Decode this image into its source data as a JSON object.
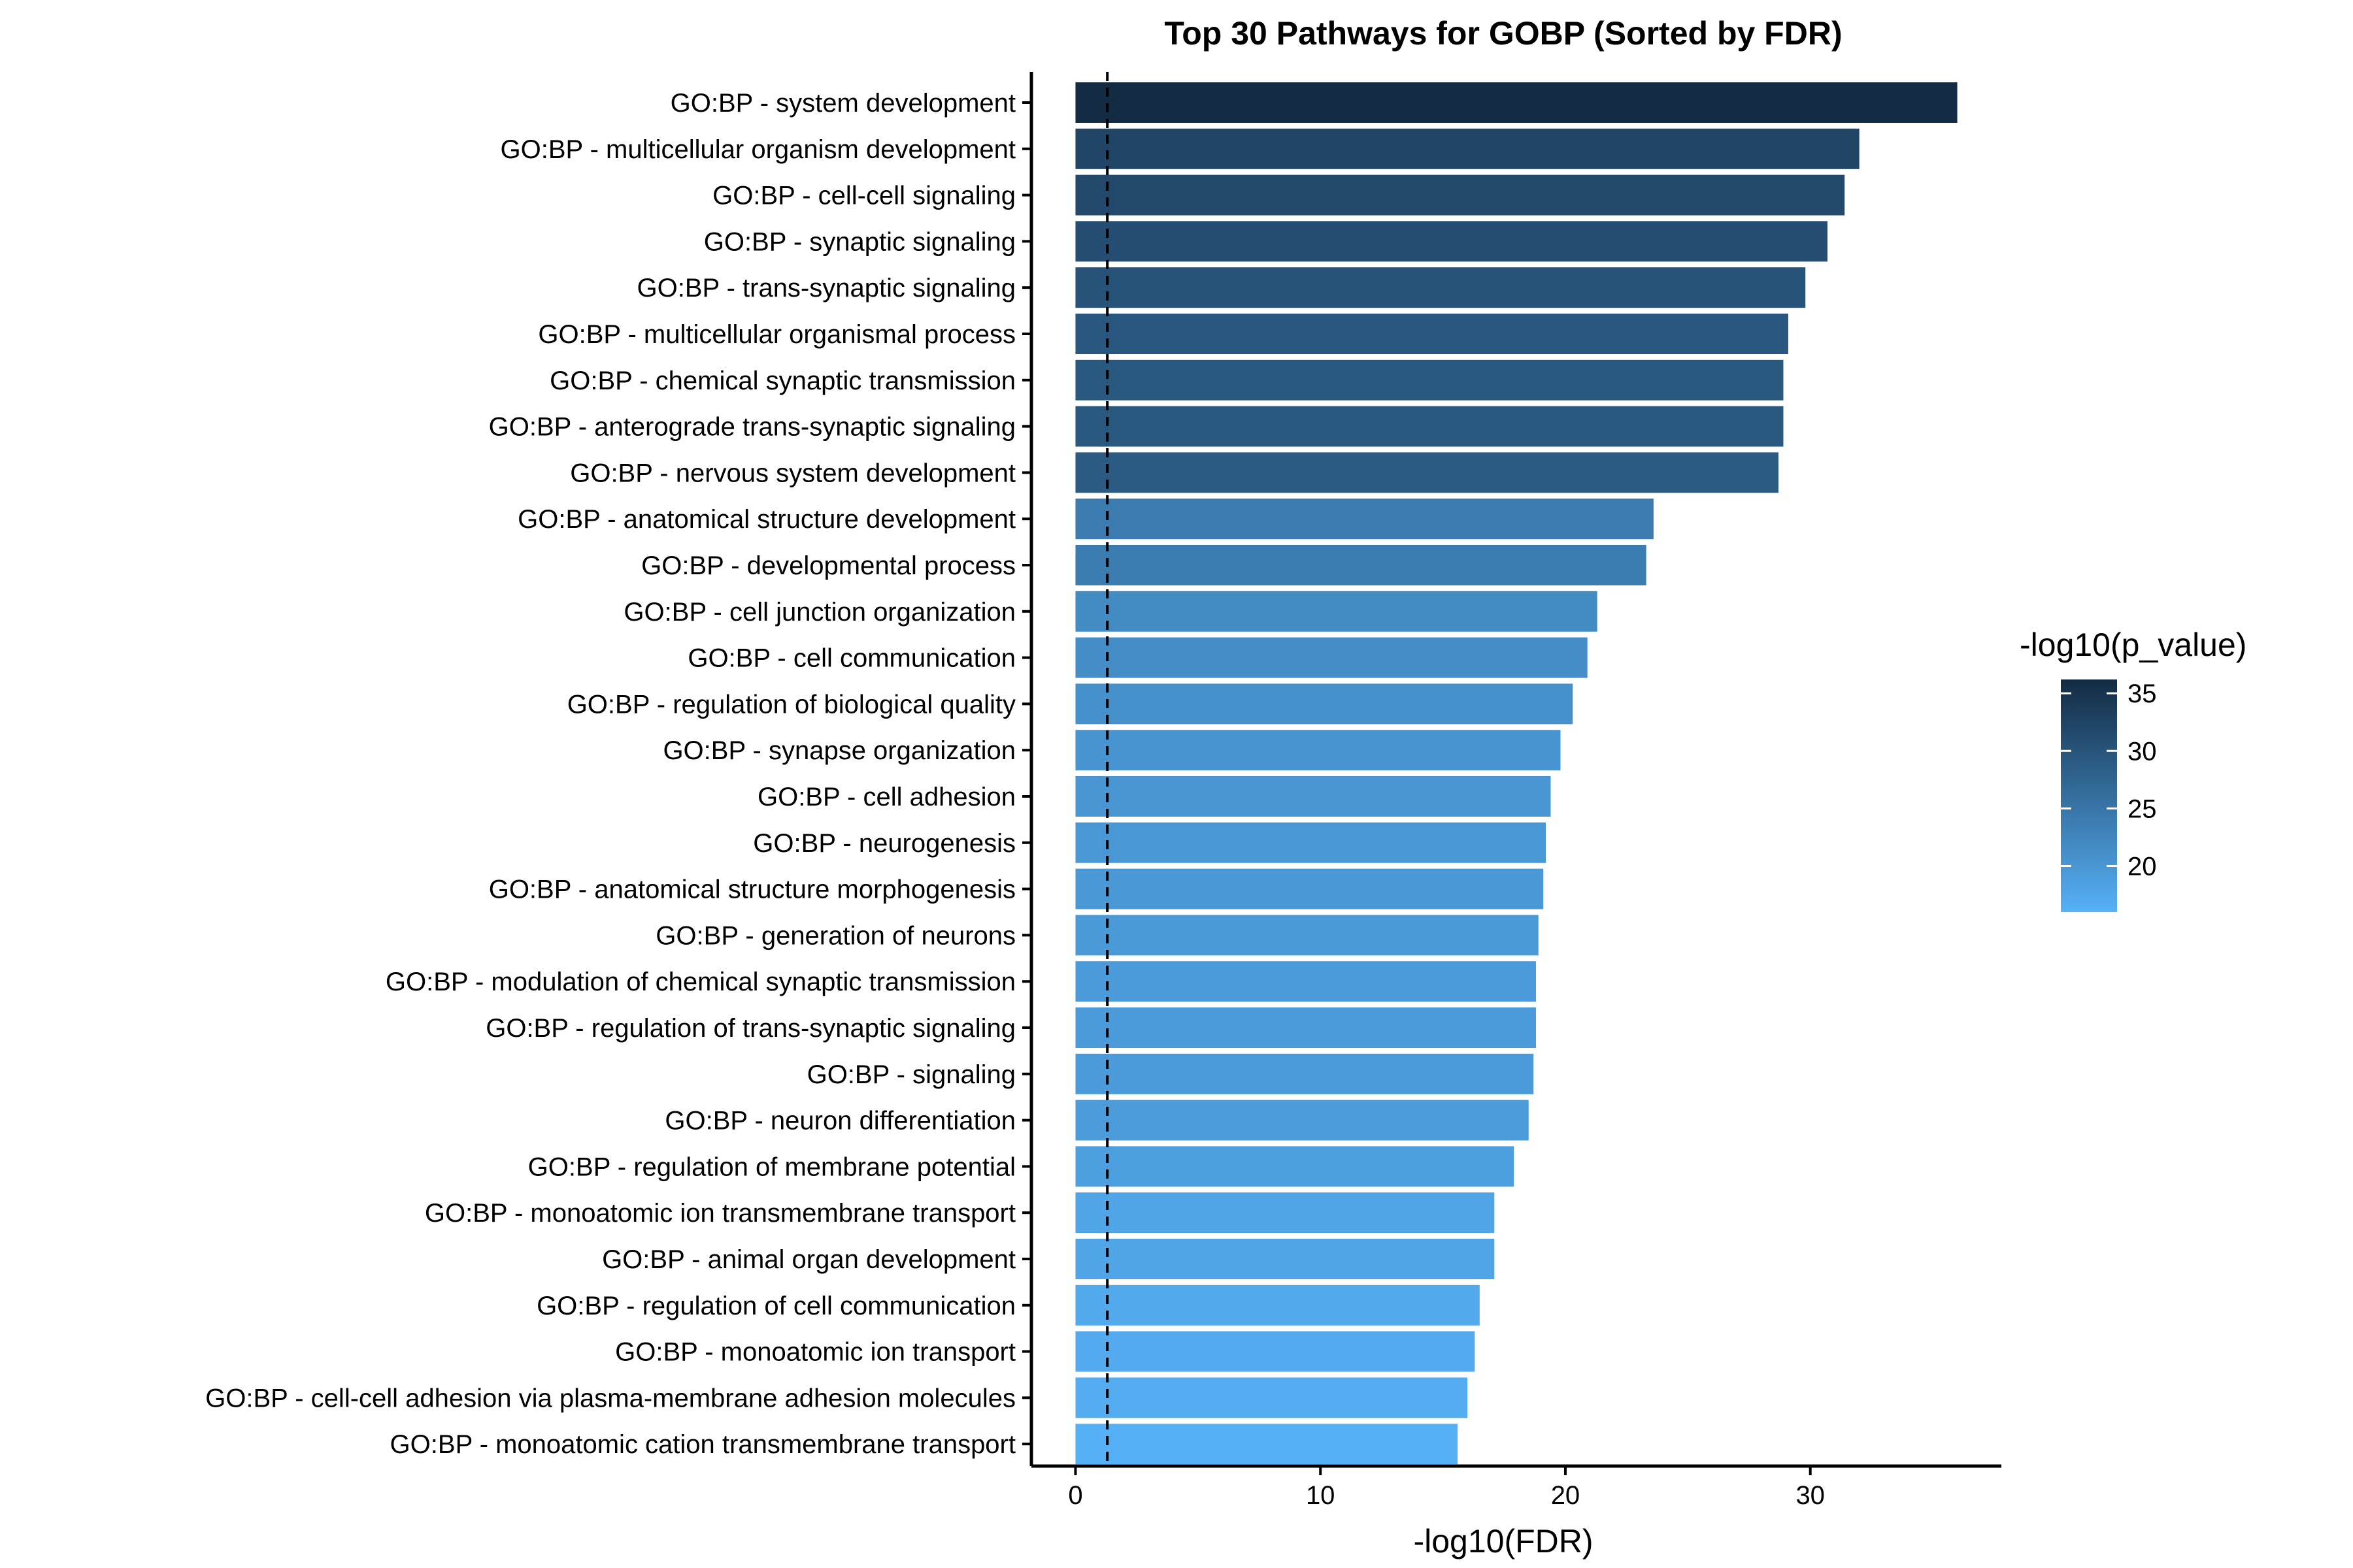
{
  "chart_data": {
    "type": "bar",
    "orientation": "horizontal",
    "title": "Top 30 Pathways for GOBP (Sorted by FDR)",
    "xlabel": "-log10(FDR)",
    "ylabel": "",
    "xlim": [
      -1.8,
      37.8
    ],
    "xticks": [
      0,
      10,
      20,
      30
    ],
    "grid": false,
    "reference_line": {
      "x": 1.3,
      "style": "dashed"
    },
    "legend": {
      "title": "-log10(p_value)",
      "placement": "right",
      "type": "colorbar",
      "range": [
        16,
        36.2
      ],
      "ticks": [
        20,
        25,
        30,
        35
      ],
      "color_low": "#56b1f7",
      "color_high": "#132b43"
    },
    "categories": [
      "GO:BP - system development",
      "GO:BP - multicellular organism development",
      "GO:BP - cell-cell signaling",
      "GO:BP - synaptic signaling",
      "GO:BP - trans-synaptic signaling",
      "GO:BP - multicellular organismal process",
      "GO:BP - chemical synaptic transmission",
      "GO:BP - anterograde trans-synaptic signaling",
      "GO:BP - nervous system development",
      "GO:BP - anatomical structure development",
      "GO:BP - developmental process",
      "GO:BP - cell junction organization",
      "GO:BP - cell communication",
      "GO:BP - regulation of biological quality",
      "GO:BP - synapse organization",
      "GO:BP - cell adhesion",
      "GO:BP - neurogenesis",
      "GO:BP - anatomical structure morphogenesis",
      "GO:BP - generation of neurons",
      "GO:BP - modulation of chemical synaptic transmission",
      "GO:BP - regulation of trans-synaptic signaling",
      "GO:BP - signaling",
      "GO:BP - neuron differentiation",
      "GO:BP - regulation of membrane potential",
      "GO:BP - monoatomic ion transmembrane transport",
      "GO:BP - animal organ development",
      "GO:BP - regulation of cell communication",
      "GO:BP - monoatomic ion transport",
      "GO:BP - cell-cell adhesion via plasma-membrane adhesion molecules",
      "GO:BP - monoatomic cation transmembrane transport"
    ],
    "values": [
      36.0,
      32.0,
      31.4,
      30.7,
      29.8,
      29.1,
      28.9,
      28.9,
      28.7,
      23.6,
      23.3,
      21.3,
      20.9,
      20.3,
      19.8,
      19.4,
      19.2,
      19.1,
      18.9,
      18.8,
      18.8,
      18.7,
      18.5,
      17.9,
      17.1,
      17.1,
      16.5,
      16.3,
      16.0,
      15.6
    ],
    "color_values": [
      36.2,
      32.3,
      31.7,
      31.0,
      30.2,
      29.5,
      29.3,
      29.3,
      29.1,
      24.1,
      23.8,
      21.8,
      21.4,
      20.9,
      20.4,
      20.0,
      19.8,
      19.7,
      19.5,
      19.4,
      19.4,
      19.3,
      19.1,
      18.6,
      17.8,
      17.8,
      17.2,
      17.0,
      16.7,
      16.2
    ]
  }
}
